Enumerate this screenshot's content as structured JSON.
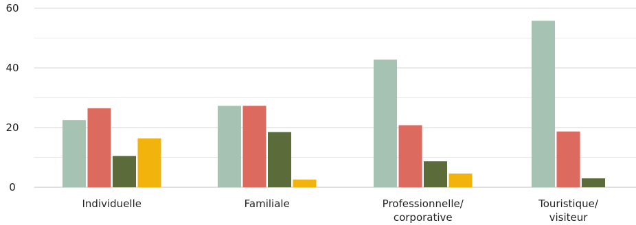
{
  "chart_data": {
    "type": "bar",
    "categories": [
      [
        "Individuelle"
      ],
      [
        "Familiale"
      ],
      [
        "Professionnelle/",
        "corporative"
      ],
      [
        "Touristique/",
        "visiteur"
      ]
    ],
    "series": [
      {
        "values": [
          22.5,
          27.3,
          42.8,
          55.8
        ],
        "color": "#a6c2b2"
      },
      {
        "values": [
          26.5,
          27.3,
          20.8,
          18.7
        ],
        "color": "#dd6a5f"
      },
      {
        "values": [
          10.5,
          18.5,
          8.7,
          3.0
        ],
        "color": "#5b6b3a"
      },
      {
        "values": [
          16.4,
          2.6,
          4.6,
          null
        ],
        "color": "#f2b40c"
      }
    ],
    "ylim": [
      0,
      60
    ],
    "yticks": [
      0,
      20,
      40,
      60
    ],
    "grid": true,
    "title": "",
    "xlabel": "",
    "ylabel": ""
  }
}
